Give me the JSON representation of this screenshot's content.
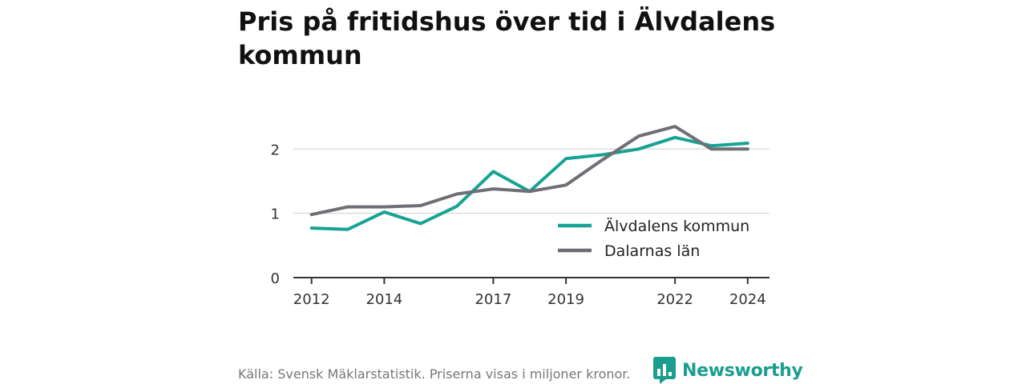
{
  "title": "Pris på fritidshus över tid i Älvdalens kommun",
  "source": "Källa: Svensk Mäklarstatistik. Priserna visas i miljoner kronor.",
  "logo_text": "Newsworthy",
  "colors": {
    "alvdalen": "#16a394",
    "dalarna": "#6f6e75",
    "grid": "#dddddd",
    "axis": "#333333",
    "brand": "#1a9e8f"
  },
  "chart_data": {
    "type": "line",
    "title": "Pris på fritidshus över tid i Älvdalens kommun",
    "xlabel": "",
    "ylabel": "",
    "x": [
      2012,
      2013,
      2014,
      2015,
      2016,
      2017,
      2018,
      2019,
      2020,
      2021,
      2022,
      2023,
      2024
    ],
    "xticks": [
      2012,
      2014,
      2017,
      2019,
      2022,
      2024
    ],
    "yticks": [
      0,
      1,
      2
    ],
    "xlim": [
      2011.5,
      2024.6
    ],
    "ylim": [
      0,
      2.7
    ],
    "grid": true,
    "legend_position": "right",
    "series": [
      {
        "name": "Älvdalens kommun",
        "values": [
          0.77,
          0.75,
          1.02,
          0.84,
          1.11,
          1.65,
          1.34,
          1.85,
          1.91,
          2.0,
          2.18,
          2.05,
          2.09
        ]
      },
      {
        "name": "Dalarnas län",
        "values": [
          0.98,
          1.1,
          1.1,
          1.12,
          1.3,
          1.38,
          1.34,
          1.44,
          1.83,
          2.2,
          2.35,
          2.0,
          2.0
        ]
      }
    ]
  }
}
